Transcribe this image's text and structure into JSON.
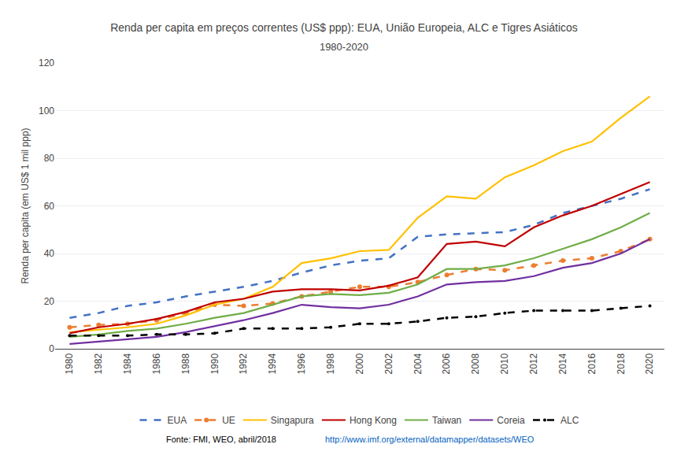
{
  "chart_data": {
    "type": "line",
    "title": "Renda per capita em preços correntes (US$ ppp): EUA, União Europeia, ALC e Tigres Asiáticos",
    "subtitle": "1980-2020",
    "y_label": "Renda per capita (em US$ 1 mil ppp)",
    "annotations": [
      "Fonte: FMI, WEO, abril/2018 ",
      "http://www.imf.org/external/datamapper/datasets/WEO"
    ],
    "x": [
      1980,
      1982,
      1984,
      1986,
      1988,
      1990,
      1992,
      1994,
      1996,
      1998,
      2000,
      2002,
      2004,
      2006,
      2008,
      2010,
      2012,
      2014,
      2016,
      2018,
      2020
    ],
    "series": [
      {
        "name": "EUA",
        "color": "#4472C4",
        "line_style": "dash",
        "values": [
          13.0,
          15.0,
          18.0,
          19.5,
          22.0,
          24.0,
          26.0,
          28.5,
          32.0,
          35.0,
          37.0,
          38.0,
          47.0,
          48.0,
          48.5,
          49.0,
          52.0,
          57.0,
          60.0,
          63.0,
          67.0
        ]
      },
      {
        "name": "UE",
        "color": "#ED7D31",
        "line_style": "dash",
        "marker": "circle",
        "values": [
          9.0,
          10.0,
          10.5,
          12.0,
          15.0,
          18.5,
          18.0,
          19.0,
          22.0,
          24.0,
          26.0,
          26.0,
          28.0,
          31.0,
          33.5,
          33.0,
          35.0,
          37.0,
          38.0,
          41.0,
          46.0
        ]
      },
      {
        "name": "Singapura",
        "color": "#FFC000",
        "line_style": "solid",
        "values": [
          7.0,
          8.0,
          9.0,
          10.5,
          14.0,
          18.5,
          21.0,
          26.0,
          36.0,
          38.0,
          41.0,
          41.5,
          55.0,
          64.0,
          63.0,
          72.0,
          77.0,
          83.0,
          87.0,
          97.0,
          106.0
        ]
      },
      {
        "name": "Hong Kong",
        "color": "#C00000",
        "line_style": "solid",
        "values": [
          6.5,
          9.0,
          10.5,
          12.5,
          15.5,
          19.5,
          21.0,
          24.0,
          25.0,
          25.0,
          24.5,
          26.5,
          30.0,
          44.0,
          45.0,
          43.0,
          51.0,
          56.0,
          60.0,
          65.0,
          70.0
        ]
      },
      {
        "name": "Taiwan",
        "color": "#70AD47",
        "line_style": "solid",
        "values": [
          5.0,
          6.0,
          7.5,
          8.5,
          10.5,
          13.0,
          15.0,
          18.5,
          22.0,
          23.0,
          22.5,
          23.5,
          27.0,
          33.5,
          33.5,
          35.0,
          38.0,
          42.0,
          46.0,
          51.0,
          57.0
        ]
      },
      {
        "name": "Coreia",
        "color": "#7030A0",
        "line_style": "solid",
        "values": [
          2.0,
          3.0,
          4.0,
          5.0,
          7.0,
          9.5,
          12.0,
          15.0,
          18.5,
          17.5,
          17.0,
          18.5,
          22.0,
          27.0,
          28.0,
          28.5,
          30.5,
          34.0,
          36.0,
          40.0,
          46.0
        ]
      },
      {
        "name": "ALC",
        "color": "#000000",
        "line_style": "dash",
        "marker": "dot",
        "values": [
          5.5,
          5.5,
          5.5,
          6.0,
          6.0,
          6.5,
          8.5,
          8.5,
          8.5,
          9.0,
          10.5,
          10.5,
          11.5,
          13.0,
          13.5,
          15.0,
          16.0,
          16.0,
          16.0,
          17.0,
          18.0
        ]
      }
    ],
    "xlim": [
      1979,
      2021
    ],
    "xticks": [
      1980,
      1982,
      1984,
      1986,
      1988,
      1990,
      1992,
      1994,
      1996,
      1998,
      2000,
      2002,
      2004,
      2006,
      2008,
      2010,
      2012,
      2014,
      2016,
      2018,
      2020
    ],
    "ylim": [
      0,
      120
    ],
    "yticks": [
      0,
      20,
      40,
      60,
      80,
      100,
      120
    ],
    "grid": "y",
    "legend": "bottom"
  }
}
